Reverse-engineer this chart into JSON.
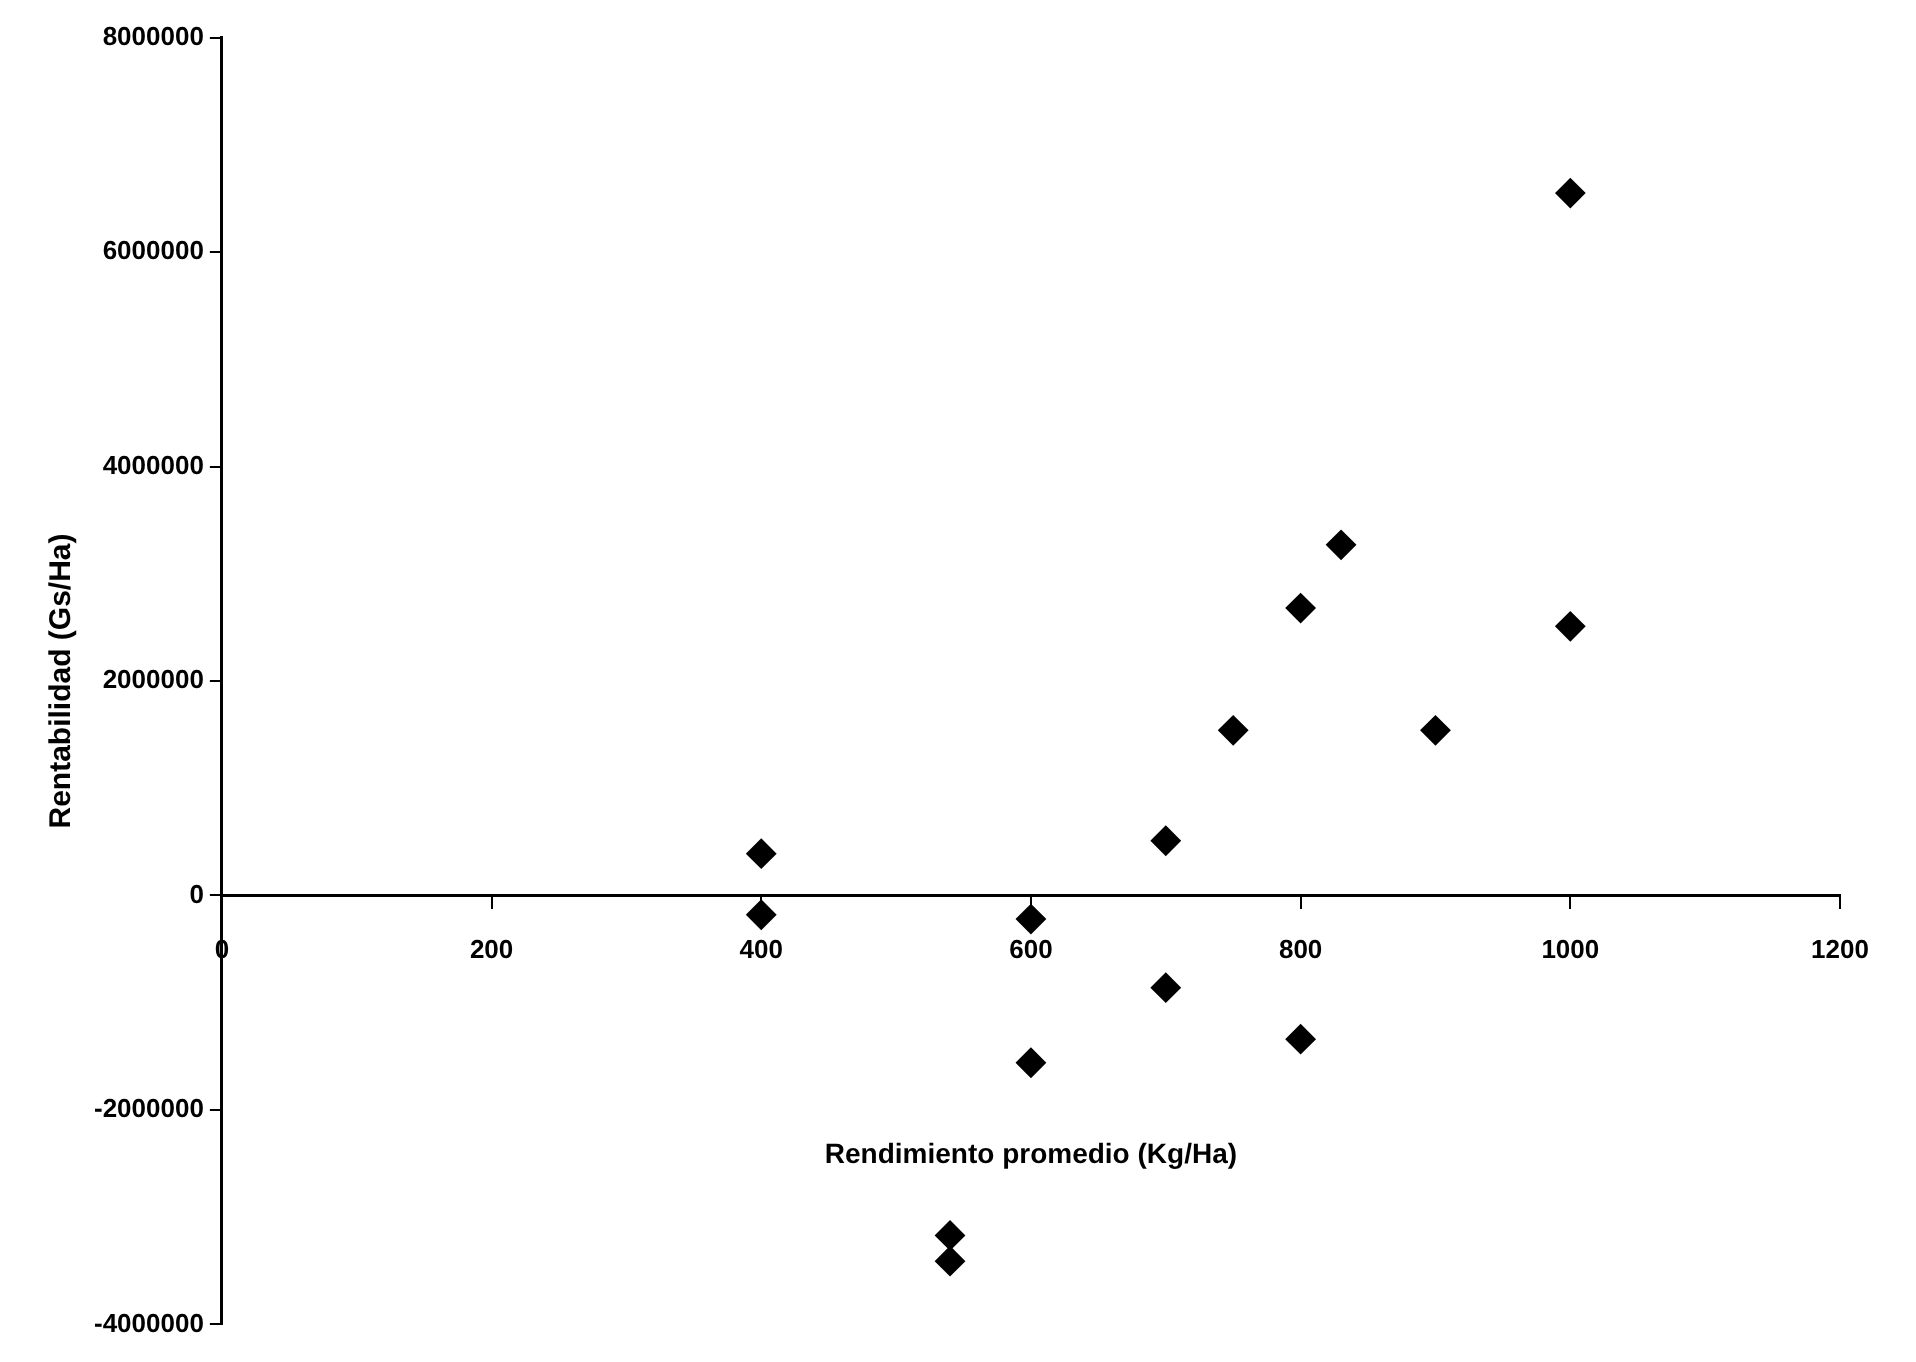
{
  "chart_data": {
    "type": "scatter",
    "xlabel": "Rendimiento promedio (Kg/Ha)",
    "ylabel": "Rentabilidad (Gs/Ha)",
    "x": [
      400,
      400,
      540,
      540,
      600,
      600,
      700,
      700,
      750,
      800,
      800,
      830,
      900,
      1000,
      1000
    ],
    "series": [
      {
        "color": "#000000",
        "values": [
          390000,
          -180000,
          -3170000,
          -3410000,
          -220000,
          -1560000,
          510000,
          -860000,
          1540000,
          2680000,
          -1340000,
          3270000,
          1540000,
          6550000,
          2510000
        ]
      }
    ],
    "xlim": [
      0,
      1200
    ],
    "xticks": [
      0,
      200,
      400,
      600,
      800,
      1000,
      1200
    ],
    "ylim": [
      -4000000,
      8000000
    ],
    "yticks": [
      -4000000,
      -2000000,
      0,
      2000000,
      4000000,
      6000000,
      8000000
    ],
    "grid": false,
    "legend": false,
    "marker": "diamond"
  }
}
